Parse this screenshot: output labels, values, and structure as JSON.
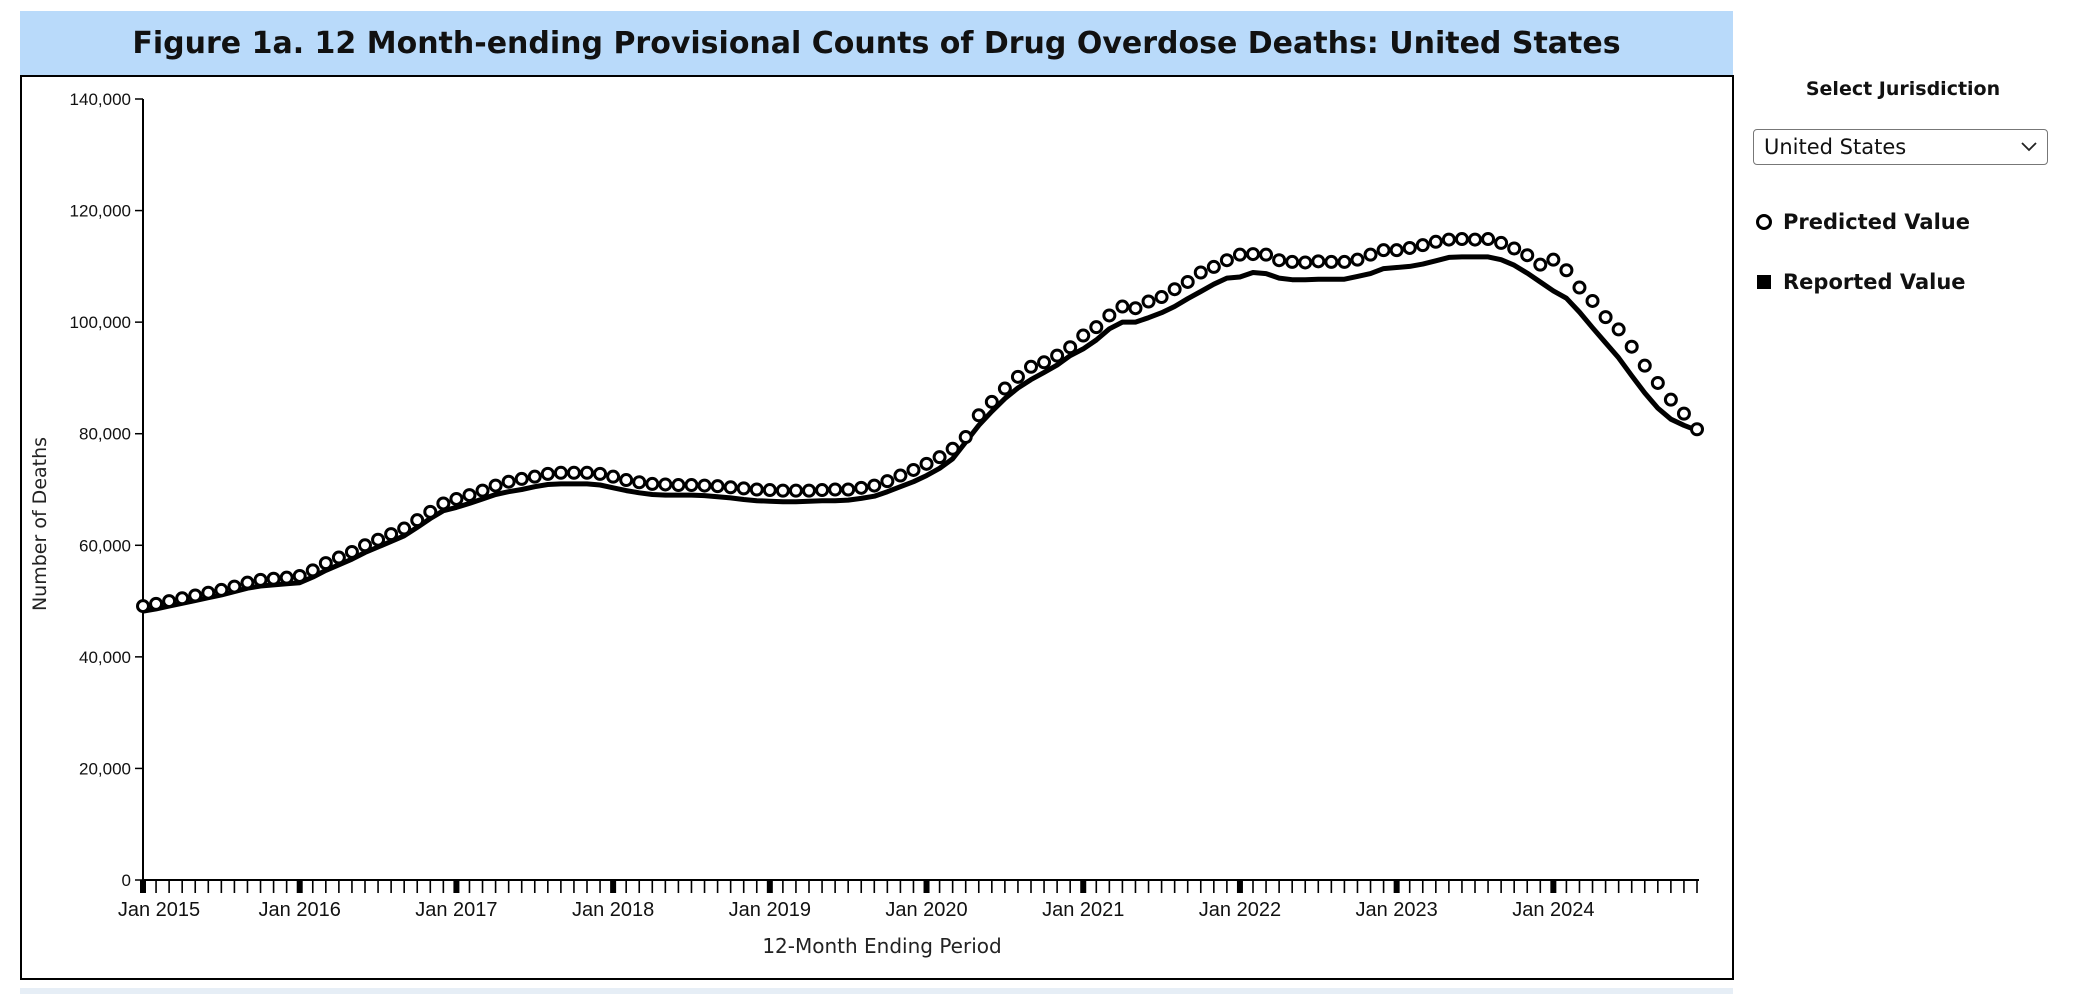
{
  "title": "Figure 1a. 12 Month-ending Provisional Counts of Drug Overdose Deaths: United States",
  "side_panel": {
    "select_label": "Select Jurisdiction",
    "select_value": "United States",
    "legend": [
      {
        "label": "Predicted Value",
        "symbol": "open-circle"
      },
      {
        "label": "Reported Value",
        "symbol": "filled-square"
      }
    ]
  },
  "colors": {
    "title_bg": "#b9dafa",
    "series": "#000000"
  },
  "chart_data": {
    "type": "line",
    "xlabel": "12-Month Ending Period",
    "ylabel": "Number of Deaths",
    "ylim": [
      0,
      140000
    ],
    "yticks": [
      "0",
      "20,000",
      "40,000",
      "60,000",
      "80,000",
      "100,000",
      "120,000",
      "140,000"
    ],
    "xticks": [
      "Jan 2015",
      "Jan 2016",
      "Jan 2017",
      "Jan 2018",
      "Jan 2019",
      "Jan 2020",
      "Jan 2021",
      "Jan 2022",
      "Jan 2023",
      "Jan 2024"
    ],
    "x_start": "Jan 2015",
    "x_end": "Dec 2024",
    "x_interval": "month",
    "grid": false,
    "legend_position": "right",
    "series": [
      {
        "name": "Predicted Value",
        "style": "open-circles",
        "values": [
          49100,
          49500,
          50000,
          50500,
          51000,
          51500,
          52000,
          52600,
          53300,
          53800,
          54000,
          54200,
          54500,
          55500,
          56800,
          57800,
          58800,
          60000,
          61000,
          62000,
          63000,
          64500,
          66000,
          67500,
          68300,
          69000,
          69800,
          70700,
          71400,
          71900,
          72300,
          72800,
          73000,
          73000,
          73000,
          72800,
          72300,
          71700,
          71300,
          71000,
          70900,
          70800,
          70800,
          70700,
          70600,
          70400,
          70200,
          70000,
          69900,
          69800,
          69800,
          69800,
          69900,
          70000,
          70000,
          70300,
          70700,
          71500,
          72500,
          73500,
          74600,
          75800,
          77300,
          79400,
          83300,
          85700,
          88100,
          90200,
          92000,
          92800,
          94000,
          95500,
          97600,
          99100,
          101200,
          102800,
          102500,
          103700,
          104500,
          105900,
          107200,
          108900,
          109900,
          111100,
          112100,
          112200,
          112100,
          111100,
          110800,
          110700,
          110900,
          110800,
          110800,
          111200,
          112100,
          112900,
          112900,
          113300,
          113800,
          114400,
          114800,
          114900,
          114800,
          114900,
          114200,
          113200,
          112000,
          110300,
          111200,
          109300,
          106200,
          103800,
          100900,
          98700,
          95600,
          92200,
          89100,
          86100,
          83600,
          80800
        ]
      },
      {
        "name": "Reported Value",
        "style": "line",
        "values": [
          48200,
          48600,
          49100,
          49600,
          50100,
          50600,
          51100,
          51700,
          52300,
          52700,
          52900,
          53100,
          53300,
          54300,
          55500,
          56500,
          57500,
          58700,
          59700,
          60700,
          61700,
          63200,
          64800,
          66200,
          66800,
          67500,
          68300,
          69100,
          69600,
          70000,
          70500,
          70900,
          71000,
          71000,
          71000,
          70800,
          70300,
          69800,
          69400,
          69100,
          69000,
          69000,
          69000,
          68900,
          68700,
          68500,
          68200,
          68000,
          67900,
          67800,
          67800,
          67900,
          68000,
          68000,
          68100,
          68400,
          68800,
          69600,
          70500,
          71400,
          72500,
          73800,
          75500,
          78500,
          81500,
          84000,
          86300,
          88200,
          89700,
          91000,
          92300,
          94000,
          95200,
          96800,
          98800,
          100000,
          100000,
          100800,
          101700,
          102800,
          104200,
          105500,
          106800,
          107900,
          108100,
          108900,
          108700,
          107900,
          107600,
          107600,
          107700,
          107700,
          107700,
          108200,
          108700,
          109600,
          109800,
          110000,
          110400,
          111000,
          111600,
          111700,
          111700,
          111700,
          111200,
          110200,
          108800,
          107200,
          105600,
          104300,
          101800,
          99000,
          96300,
          93600,
          90400,
          87300,
          84600,
          82600,
          81500,
          80600
        ]
      }
    ]
  }
}
